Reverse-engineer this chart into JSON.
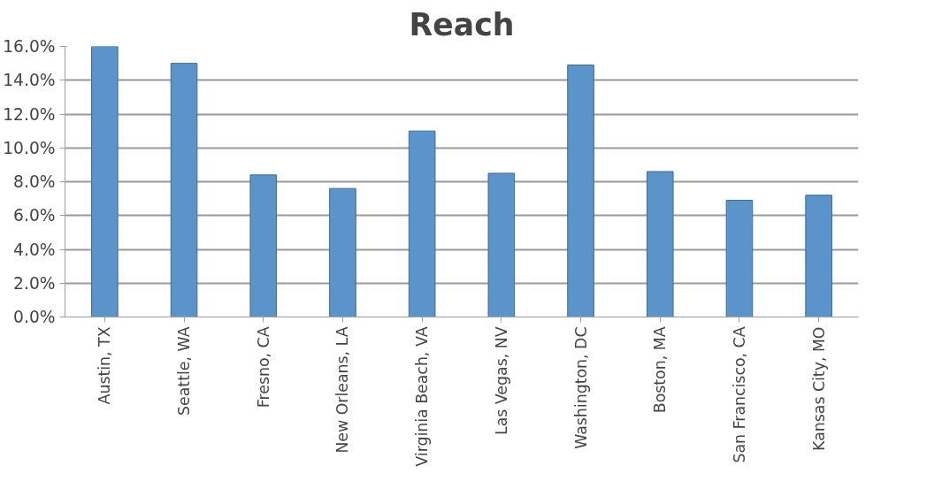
{
  "chart_data": {
    "type": "bar",
    "title": "Reach",
    "categories": [
      "Austin, TX",
      "Seattle, WA",
      "Fresno, CA",
      "New Orleans, LA",
      "Virginia Beach, VA",
      "Las Vegas, NV",
      "Washington, DC",
      "Boston, MA",
      "San Francisco, CA",
      "Kansas City, MO"
    ],
    "values": [
      16.0,
      15.0,
      8.4,
      7.6,
      11.0,
      8.5,
      14.9,
      8.6,
      6.9,
      7.2
    ],
    "color": "#5b93cb",
    "ylim": [
      0,
      16
    ],
    "yticks": [
      {
        "value": 0,
        "label": "0.0%"
      },
      {
        "value": 2,
        "label": "2.0%"
      },
      {
        "value": 4,
        "label": "4.0%"
      },
      {
        "value": 6,
        "label": "6.0%"
      },
      {
        "value": 8,
        "label": "8.0%"
      },
      {
        "value": 10,
        "label": "10.0%"
      },
      {
        "value": 12,
        "label": "12.0%"
      },
      {
        "value": 14,
        "label": "14.0%"
      },
      {
        "value": 16,
        "label": "16.0%"
      }
    ],
    "grid": "y"
  }
}
